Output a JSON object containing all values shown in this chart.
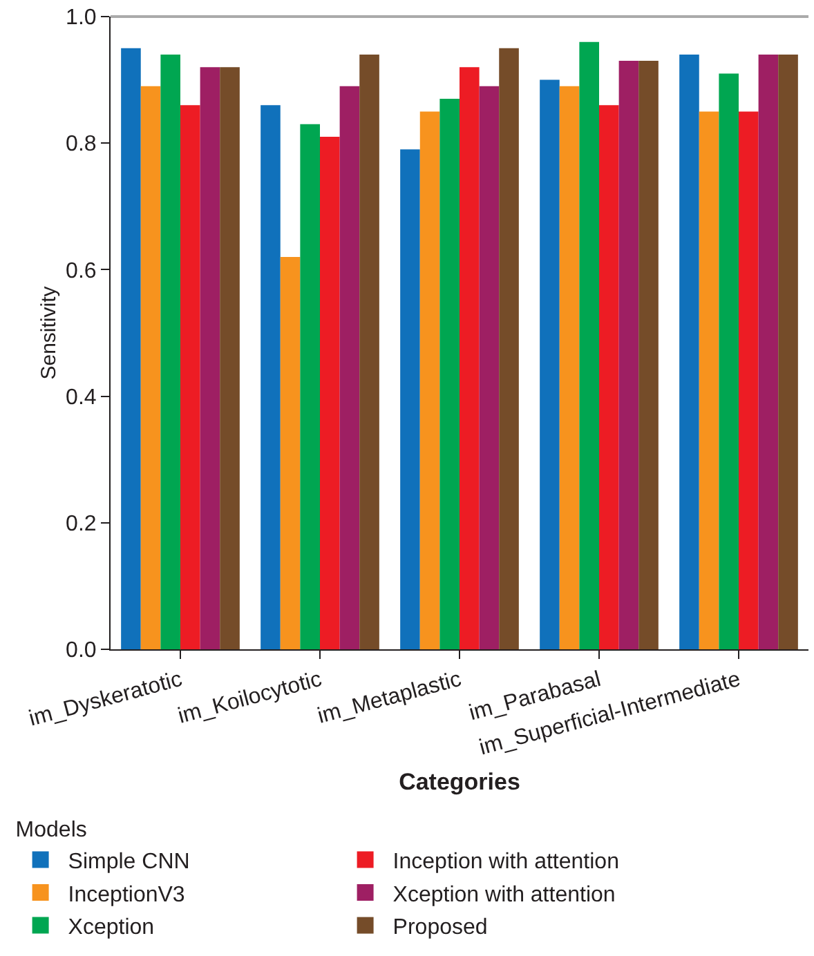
{
  "chart_data": {
    "type": "bar",
    "xlabel": "Categories",
    "ylabel": "Sensitivity",
    "legend_title": "Models",
    "legend": "bottom left",
    "categories": [
      "im_Dyskeratotic",
      "im_Koilocytotic",
      "im_Metaplastic",
      "im_Parabasal",
      "im_Superficial-Intermediate"
    ],
    "series": [
      {
        "name": "Simple CNN",
        "color": "#1071bb",
        "values": [
          0.95,
          0.86,
          0.79,
          0.9,
          0.94
        ]
      },
      {
        "name": "InceptionV3",
        "color": "#f7931e",
        "values": [
          0.89,
          0.62,
          0.85,
          0.89,
          0.85
        ]
      },
      {
        "name": "Xception",
        "color": "#00a651",
        "values": [
          0.94,
          0.83,
          0.87,
          0.96,
          0.91
        ]
      },
      {
        "name": "Inception with attention",
        "color": "#ed1c24",
        "values": [
          0.86,
          0.81,
          0.92,
          0.86,
          0.85
        ]
      },
      {
        "name": "Xception with attention",
        "color": "#9e1f63",
        "values": [
          0.92,
          0.89,
          0.89,
          0.93,
          0.94
        ]
      },
      {
        "name": "Proposed",
        "color": "#754c29",
        "values": [
          0.92,
          0.94,
          0.95,
          0.93,
          0.94
        ]
      }
    ],
    "ylim": [
      0,
      1
    ],
    "yticks": [
      {
        "value": 0,
        "label": "0.0"
      },
      {
        "value": 0.2,
        "label": "0.2"
      },
      {
        "value": 0.4,
        "label": "0.4"
      },
      {
        "value": 0.6,
        "label": "0.6"
      },
      {
        "value": 0.8,
        "label": "0.8"
      },
      {
        "value": 1,
        "label": "1.0"
      }
    ],
    "grid": false
  }
}
